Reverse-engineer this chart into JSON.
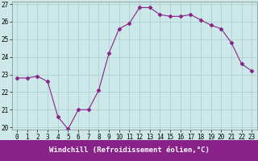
{
  "x": [
    0,
    1,
    2,
    3,
    4,
    5,
    6,
    7,
    8,
    9,
    10,
    11,
    12,
    13,
    14,
    15,
    16,
    17,
    18,
    19,
    20,
    21,
    22,
    23
  ],
  "y": [
    22.8,
    22.8,
    22.9,
    22.6,
    20.6,
    19.9,
    21.0,
    21.0,
    22.1,
    24.2,
    25.6,
    25.9,
    26.8,
    26.8,
    26.4,
    26.3,
    26.3,
    26.4,
    26.1,
    25.8,
    25.6,
    24.8,
    23.6,
    23.2
  ],
  "line_color": "#882288",
  "marker": "D",
  "marker_size": 2.5,
  "bg_color": "#cce8e8",
  "grid_color": "#aacccc",
  "xlabel": "Windchill (Refroidissement éolien,°C)",
  "xlabel_bg": "#882288",
  "xlabel_color": "#ffffff",
  "ylim": [
    20,
    27
  ],
  "xlim": [
    -0.5,
    23.5
  ],
  "yticks": [
    20,
    21,
    22,
    23,
    24,
    25,
    26,
    27
  ],
  "xticks": [
    0,
    1,
    2,
    3,
    4,
    5,
    6,
    7,
    8,
    9,
    10,
    11,
    12,
    13,
    14,
    15,
    16,
    17,
    18,
    19,
    20,
    21,
    22,
    23
  ],
  "tick_label_size": 5.5,
  "xlabel_fontsize": 6.5
}
